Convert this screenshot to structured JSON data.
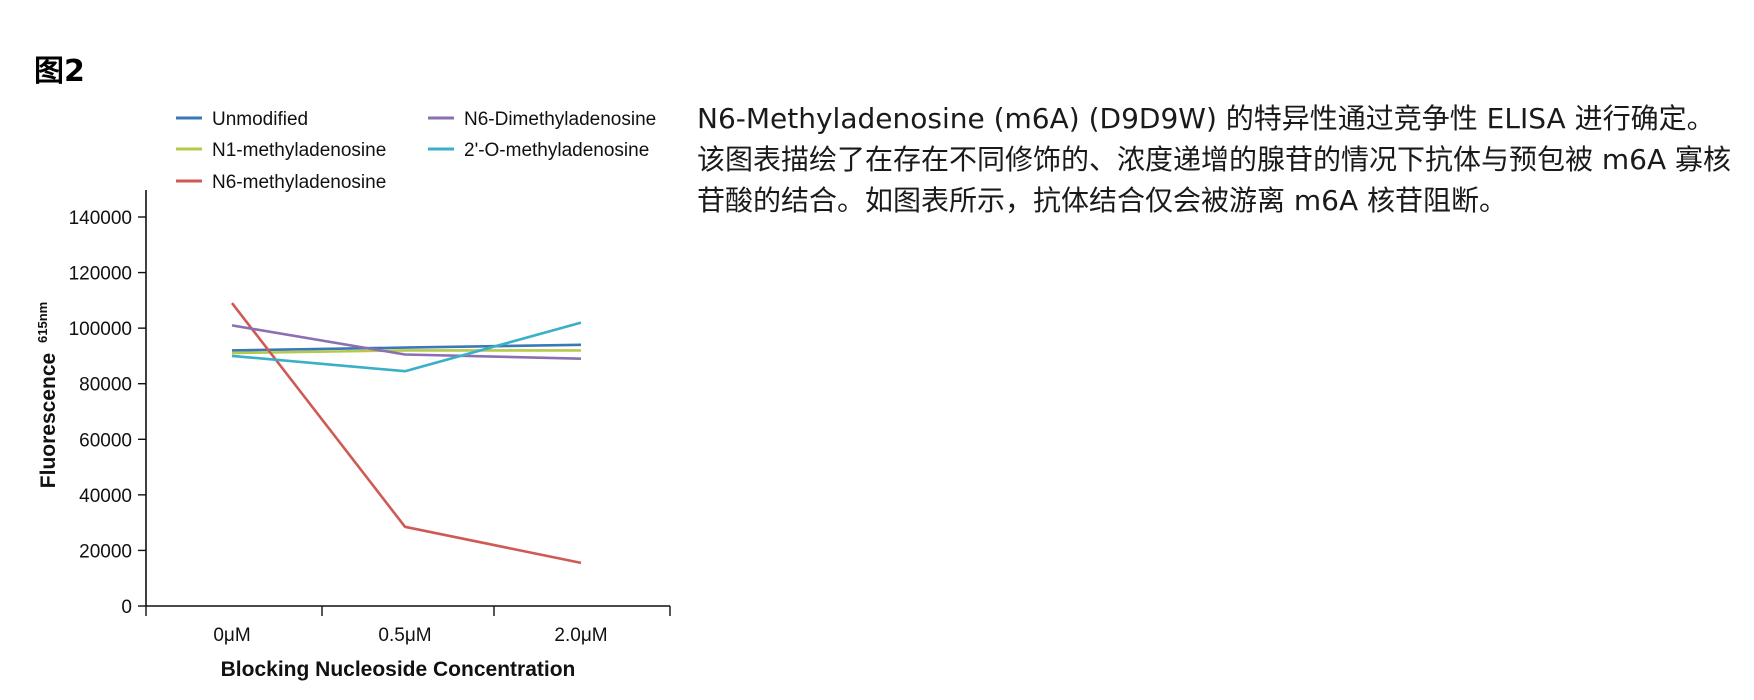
{
  "figure_label": "图2",
  "caption": "N6-Methyladenosine (m6A) (D9D9W) 的特异性通过竞争性 ELISA 进行确定。该图表描绘了在存在不同修饰的、浓度递增的腺苷的情况下抗体与预包被 m6A 寡核苷酸的结合。如图表所示，抗体结合仅会被游离 m6A 核苷阻断。",
  "chart_data": {
    "type": "line",
    "title": "",
    "xlabel": "Blocking Nucleoside Concentration",
    "ylabel": "Fluorescence",
    "ylabel_sub": "615nm",
    "categories": [
      "0μM",
      "0.5μM",
      "2.0μM"
    ],
    "ylim": [
      0,
      140000
    ],
    "yticks": [
      0,
      20000,
      40000,
      60000,
      80000,
      100000,
      120000,
      140000
    ],
    "grid": false,
    "legend_position": "top",
    "series": [
      {
        "name": "Unmodified",
        "color": "#3b78b8",
        "values": [
          92000,
          93000,
          94000
        ]
      },
      {
        "name": "N1-methyladenosine",
        "color": "#b5c94a",
        "values": [
          91000,
          92000,
          92000
        ]
      },
      {
        "name": "N6-methyladenosine",
        "color": "#cf5a55",
        "values": [
          109000,
          28500,
          15500
        ]
      },
      {
        "name": "N6-Dimethyladenosine",
        "color": "#8b6fb0",
        "values": [
          101000,
          90500,
          89000
        ]
      },
      {
        "name": "2'-O-methyladenosine",
        "color": "#3ab0c8",
        "values": [
          90000,
          84500,
          102000
        ]
      }
    ]
  }
}
